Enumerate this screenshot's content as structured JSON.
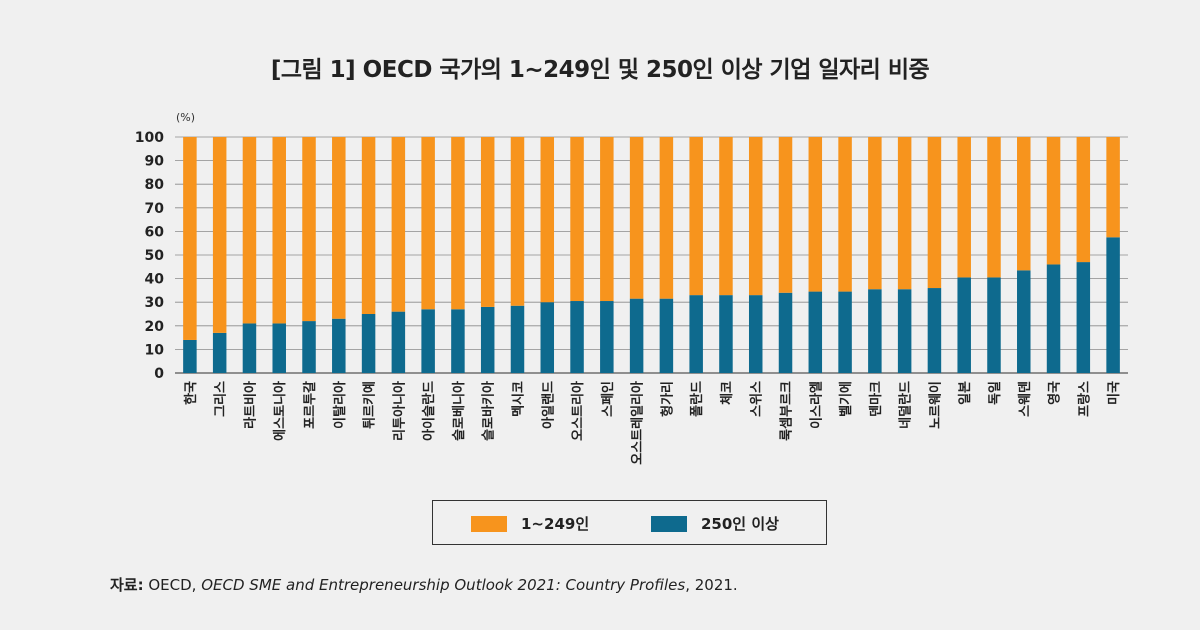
{
  "chart_data": {
    "type": "bar",
    "stacked": true,
    "title": "[그림 1] OECD 국가의 1~249인 및 250인 이상 기업 일자리 비중",
    "unit_label": "(%)",
    "ylim": [
      0,
      100
    ],
    "yticks": [
      0,
      10,
      20,
      30,
      40,
      50,
      60,
      70,
      80,
      90,
      100
    ],
    "grid": true,
    "legend_position": "bottom",
    "categories": [
      "한국",
      "그리스",
      "라트비아",
      "에스토니아",
      "포르투갈",
      "이탈리아",
      "튀르키예",
      "리투아니아",
      "아이슬란드",
      "슬로베니아",
      "슬로바키아",
      "멕시코",
      "아일랜드",
      "오스트리아",
      "스페인",
      "오스트레일리아",
      "헝가리",
      "폴란드",
      "체코",
      "스위스",
      "룩셈부르크",
      "이스라엘",
      "벨기에",
      "덴마크",
      "네덜란드",
      "노르웨이",
      "일본",
      "독일",
      "스웨덴",
      "영국",
      "프랑스",
      "미국"
    ],
    "series": [
      {
        "name": "250인 이상",
        "color": "#0e6a8e",
        "values": [
          14,
          17,
          21,
          21,
          22,
          23,
          25,
          26,
          27,
          27,
          28,
          28.5,
          30,
          30.5,
          30.5,
          31.5,
          31.5,
          33,
          33,
          33,
          34,
          34.5,
          34.5,
          35.5,
          35.5,
          36,
          40.5,
          40.5,
          43.5,
          46,
          47,
          57.5
        ]
      },
      {
        "name": "1~249인",
        "color": "#f7941d",
        "values": [
          86,
          83,
          79,
          79,
          78,
          77,
          75,
          74,
          73,
          73,
          72,
          71.5,
          70,
          69.5,
          69.5,
          68.5,
          68.5,
          67,
          67,
          67,
          66,
          65.5,
          65.5,
          64.5,
          64.5,
          64,
          59.5,
          59.5,
          56.5,
          54,
          53,
          42.5
        ]
      }
    ]
  },
  "legend": {
    "item1": {
      "label": "1~249인",
      "color": "#f7941d"
    },
    "item2": {
      "label": "250인 이상",
      "color": "#0e6a8e"
    }
  },
  "source": {
    "label": "자료:",
    "text_pre": " OECD, ",
    "text_italic": "OECD SME and Entrepreneurship Outlook 2021: Country Profiles",
    "text_post": ", 2021."
  }
}
